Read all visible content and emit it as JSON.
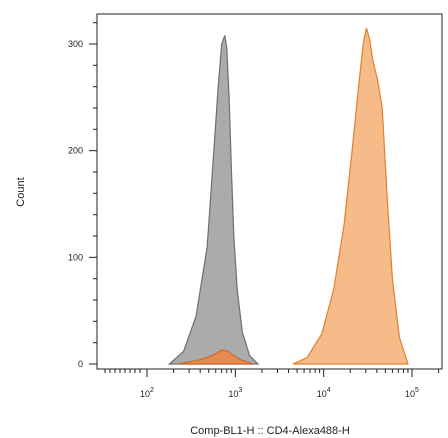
{
  "chart_data": {
    "type": "area",
    "xlabel": "Comp-BL1-H :: CD4-Alexa488-H",
    "ylabel": "Count",
    "x_scale": "log",
    "xlim": [
      1,
      150000
    ],
    "ylim": [
      0,
      330
    ],
    "x_ticks": [
      {
        "value": 100,
        "base": "10",
        "exp": "2"
      },
      {
        "value": 1000,
        "base": "10",
        "exp": "3"
      },
      {
        "value": 10000,
        "base": "10",
        "exp": "4"
      },
      {
        "value": 100000,
        "base": "10",
        "exp": "5"
      }
    ],
    "y_ticks": [
      {
        "value": 0,
        "label": "0"
      },
      {
        "value": 100,
        "label": "100"
      },
      {
        "value": 200,
        "label": "200"
      },
      {
        "value": 300,
        "label": "300"
      }
    ],
    "grid": false,
    "series": [
      {
        "color": "#a6a6a6",
        "stroke": "#6f6f6f",
        "x": [
          180,
          260,
          360,
          480,
          560,
          640,
          700,
          760,
          800,
          850,
          900,
          960,
          1050,
          1200,
          1450,
          1800
        ],
        "y": [
          0,
          12,
          45,
          110,
          190,
          260,
          300,
          308,
          296,
          250,
          185,
          120,
          70,
          30,
          8,
          0
        ]
      },
      {
        "color": "#f7b783",
        "stroke": "#e08030",
        "x": [
          4500,
          6500,
          9500,
          13000,
          17000,
          21000,
          24500,
          28000,
          30500,
          33000,
          36000,
          41000,
          46000,
          52000,
          60000,
          72000,
          90000
        ],
        "y": [
          0,
          6,
          28,
          70,
          130,
          200,
          255,
          300,
          315,
          305,
          285,
          265,
          240,
          160,
          80,
          25,
          0
        ]
      },
      {
        "color": "#e8894a",
        "stroke": "#cc6a2c",
        "x": [
          230,
          400,
          550,
          700,
          820,
          950,
          1150,
          1600
        ],
        "y": [
          0,
          4,
          8,
          13,
          12,
          8,
          4,
          0
        ]
      }
    ]
  }
}
